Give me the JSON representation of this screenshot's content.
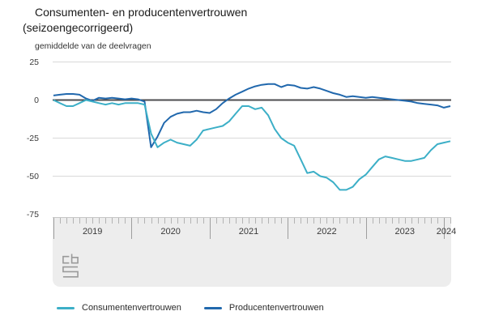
{
  "header": {
    "title_line1": "Consumenten- en producentenvertrouwen",
    "title_line2": "(seizoengecorrigeerd)",
    "subtitle": "gemiddelde van de deelvragen"
  },
  "colors": {
    "consumer_line": "#3cafc7",
    "producer_line": "#2168ad",
    "zero_line": "#4d4d4f",
    "gridline": "#d9d9d9",
    "axis_band": "#ededed",
    "tick": "#9e9e9e",
    "logo": "#9a9a9a"
  },
  "logo": {
    "name": "cbs-logo"
  },
  "chart_data": {
    "type": "line",
    "title": "Consumenten- en producentenvertrouwen (seizoengecorrigeerd)",
    "subtitle": "gemiddelde van de deelvragen",
    "x_interval": "monthly",
    "x_start": "2019-01",
    "x_end": "2024-02",
    "x_tick_labels": [
      "2019",
      "2020",
      "2021",
      "2022",
      "2023",
      "2024"
    ],
    "y_ticks": [
      25,
      0,
      -25,
      -50,
      -75
    ],
    "y_tick_labels": [
      "25",
      "0",
      "-25",
      "-50",
      "-75"
    ],
    "ylim": [
      -75,
      25
    ],
    "zero_line": true,
    "grid": true,
    "legend_position": "bottom",
    "series": [
      {
        "name": "Consumentenvertrouwen",
        "color": "#3cafc7",
        "values": [
          0,
          -2,
          -4,
          -4,
          -2,
          0,
          -1,
          -2,
          -3,
          -2,
          -3,
          -2,
          -2,
          -2,
          -3,
          -22,
          -31,
          -28,
          -26,
          -28,
          -29,
          -30,
          -26,
          -20,
          -19,
          -18,
          -17,
          -14,
          -9,
          -4,
          -4,
          -6,
          -5,
          -10,
          -19,
          -25,
          -28,
          -30,
          -39,
          -48,
          -47,
          -50,
          -51,
          -54,
          -59,
          -59,
          -57,
          -52,
          -49,
          -44,
          -39,
          -37,
          -38,
          -39,
          -40,
          -40,
          -39,
          -38,
          -33,
          -29,
          -28,
          -27
        ]
      },
      {
        "name": "Producentenvertrouwen",
        "color": "#2168ad",
        "values": [
          3,
          3.5,
          4,
          4,
          3.5,
          1,
          -0.5,
          1.5,
          1,
          1.5,
          1,
          0.5,
          1,
          0.5,
          -1,
          -31,
          -24,
          -15,
          -11,
          -9,
          -8,
          -8,
          -7,
          -8,
          -8.5,
          -6,
          -2,
          1,
          3.5,
          5.5,
          7.5,
          9,
          10,
          10.5,
          10.5,
          8.5,
          10,
          9.5,
          8,
          7.5,
          8.5,
          7.5,
          6,
          4.5,
          3.5,
          2,
          2.5,
          2,
          1.5,
          2,
          1.5,
          1,
          0.5,
          0,
          -0.5,
          -1,
          -2,
          -2.5,
          -3,
          -3.5,
          -5,
          -4
        ]
      }
    ]
  }
}
